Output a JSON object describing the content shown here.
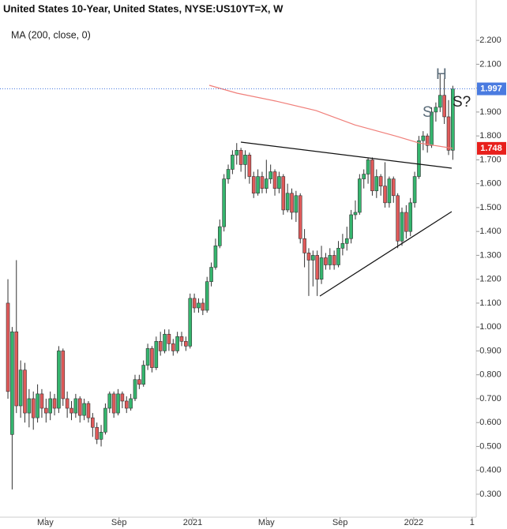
{
  "chart_data": {
    "type": "candlestick",
    "title": "United States 10-Year, United States, NYSE:US10YT=X, W",
    "up_color": "#35b56e",
    "down_color": "#e05a5a",
    "wick_color": "#333333",
    "x": [
      1.97,
      2.2,
      2.43,
      2.66,
      2.89,
      3.12,
      3.35,
      3.58,
      3.81,
      4.04,
      4.27,
      4.5,
      4.73,
      4.96,
      5.19,
      5.42,
      5.65,
      5.88,
      6.11,
      6.34,
      6.57,
      6.8,
      7.03,
      7.26,
      7.49,
      7.72,
      7.95,
      8.18,
      8.41,
      8.64,
      8.87,
      9.1,
      9.33,
      9.56,
      9.79,
      10.02,
      10.25,
      10.48,
      10.71,
      10.94,
      11.17,
      11.4,
      11.63,
      11.86,
      12.09,
      12.32,
      12.55,
      12.78,
      13.01,
      13.24,
      13.47,
      13.7,
      13.93,
      14.16,
      14.39,
      14.62,
      14.85,
      15.08,
      15.31,
      15.54,
      15.77,
      16,
      16.23,
      16.46,
      16.69,
      16.92,
      17.15,
      17.38,
      17.61,
      17.84,
      18.07,
      18.3,
      18.53,
      18.76,
      18.99,
      19.22,
      19.45,
      19.68,
      19.91,
      20.14,
      20.37,
      20.6,
      20.83,
      21.06,
      21.29,
      21.52,
      21.75,
      21.98,
      22.21,
      22.44,
      22.67,
      22.9,
      23.13,
      23.36,
      23.59,
      23.82,
      24.05,
      24.28,
      24.51,
      24.74,
      24.97,
      25.2,
      25.43,
      25.66,
      25.89,
      26.12
    ],
    "open": [
      1.1,
      0.55,
      0.98,
      0.67,
      0.82,
      0.64,
      0.7,
      0.62,
      0.72,
      0.66,
      0.64,
      0.7,
      0.66,
      0.9,
      0.7,
      0.66,
      0.64,
      0.7,
      0.63,
      0.68,
      0.62,
      0.58,
      0.53,
      0.56,
      0.66,
      0.72,
      0.64,
      0.72,
      0.69,
      0.66,
      0.7,
      0.78,
      0.76,
      0.84,
      0.91,
      0.83,
      0.94,
      0.9,
      0.97,
      0.93,
      0.9,
      0.96,
      0.94,
      0.92,
      1.12,
      1.08,
      1.1,
      1.07,
      1.19,
      1.25,
      1.34,
      1.42,
      1.62,
      1.66,
      1.72,
      1.74,
      1.68,
      1.72,
      1.63,
      1.56,
      1.63,
      1.58,
      1.62,
      1.65,
      1.58,
      1.63,
      1.49,
      1.56,
      1.48,
      1.55,
      1.37,
      1.31,
      1.28,
      1.3,
      1.2,
      1.29,
      1.26,
      1.3,
      1.26,
      1.33,
      1.35,
      1.37,
      1.47,
      1.48,
      1.62,
      1.64,
      1.7,
      1.57,
      1.63,
      1.59,
      1.52,
      1.62,
      1.55,
      1.36,
      1.48,
      1.4,
      1.52,
      1.63,
      1.78,
      1.8,
      1.76,
      1.9,
      1.92,
      1.97,
      1.88,
      1.74
    ],
    "high": [
      1.2,
      1.0,
      1.28,
      0.86,
      0.85,
      0.74,
      0.73,
      0.76,
      0.74,
      0.7,
      0.73,
      0.72,
      0.92,
      0.91,
      0.73,
      0.69,
      0.72,
      0.71,
      0.7,
      0.69,
      0.64,
      0.6,
      0.59,
      0.68,
      0.73,
      0.73,
      0.74,
      0.73,
      0.71,
      0.72,
      0.8,
      0.8,
      0.86,
      0.93,
      0.92,
      0.96,
      0.98,
      0.99,
      0.99,
      0.95,
      0.98,
      0.98,
      0.96,
      1.14,
      1.14,
      1.12,
      1.12,
      1.21,
      1.27,
      1.37,
      1.45,
      1.64,
      1.68,
      1.74,
      1.77,
      1.75,
      1.74,
      1.73,
      1.65,
      1.66,
      1.65,
      1.7,
      1.68,
      1.66,
      1.65,
      1.64,
      1.6,
      1.58,
      1.57,
      1.56,
      1.41,
      1.33,
      1.32,
      1.32,
      1.34,
      1.31,
      1.33,
      1.32,
      1.36,
      1.39,
      1.42,
      1.49,
      1.53,
      1.64,
      1.66,
      1.71,
      1.71,
      1.66,
      1.64,
      1.69,
      1.63,
      1.63,
      1.56,
      1.5,
      1.51,
      1.54,
      1.65,
      1.8,
      1.82,
      1.81,
      1.92,
      1.94,
      2.06,
      2.04,
      1.95,
      2.01
    ],
    "low": [
      0.7,
      0.32,
      0.64,
      0.62,
      0.6,
      0.58,
      0.57,
      0.6,
      0.62,
      0.6,
      0.61,
      0.63,
      0.64,
      0.67,
      0.62,
      0.61,
      0.62,
      0.6,
      0.61,
      0.6,
      0.54,
      0.51,
      0.5,
      0.55,
      0.64,
      0.62,
      0.63,
      0.66,
      0.64,
      0.65,
      0.69,
      0.74,
      0.75,
      0.82,
      0.81,
      0.82,
      0.88,
      0.89,
      0.9,
      0.88,
      0.89,
      0.92,
      0.9,
      0.91,
      1.06,
      1.06,
      1.05,
      1.06,
      1.17,
      1.24,
      1.33,
      1.4,
      1.6,
      1.64,
      1.68,
      1.65,
      1.62,
      1.6,
      1.54,
      1.55,
      1.56,
      1.56,
      1.6,
      1.55,
      1.56,
      1.47,
      1.48,
      1.45,
      1.44,
      1.35,
      1.25,
      1.13,
      1.17,
      1.13,
      1.18,
      1.24,
      1.24,
      1.24,
      1.25,
      1.3,
      1.32,
      1.35,
      1.45,
      1.47,
      1.58,
      1.6,
      1.55,
      1.54,
      1.55,
      1.5,
      1.5,
      1.52,
      1.33,
      1.34,
      1.37,
      1.38,
      1.5,
      1.62,
      1.74,
      1.73,
      1.75,
      1.86,
      1.9,
      1.85,
      1.72,
      1.7
    ],
    "close": [
      0.73,
      0.98,
      0.67,
      0.82,
      0.64,
      0.7,
      0.62,
      0.72,
      0.66,
      0.64,
      0.7,
      0.66,
      0.9,
      0.7,
      0.66,
      0.64,
      0.7,
      0.63,
      0.68,
      0.62,
      0.58,
      0.53,
      0.56,
      0.66,
      0.72,
      0.64,
      0.72,
      0.69,
      0.66,
      0.7,
      0.78,
      0.76,
      0.84,
      0.91,
      0.83,
      0.94,
      0.9,
      0.97,
      0.93,
      0.9,
      0.96,
      0.94,
      0.92,
      1.12,
      1.08,
      1.1,
      1.07,
      1.19,
      1.25,
      1.34,
      1.42,
      1.62,
      1.66,
      1.72,
      1.74,
      1.68,
      1.72,
      1.63,
      1.56,
      1.63,
      1.58,
      1.62,
      1.65,
      1.58,
      1.63,
      1.49,
      1.56,
      1.48,
      1.55,
      1.37,
      1.31,
      1.28,
      1.3,
      1.2,
      1.29,
      1.26,
      1.3,
      1.26,
      1.33,
      1.35,
      1.37,
      1.47,
      1.48,
      1.62,
      1.64,
      1.7,
      1.57,
      1.63,
      1.59,
      1.52,
      1.62,
      1.55,
      1.36,
      1.48,
      1.4,
      1.52,
      1.63,
      1.78,
      1.8,
      1.76,
      1.9,
      1.92,
      1.97,
      1.88,
      1.74,
      1.997
    ],
    "ma": {
      "name": "MA (200, close, 0)",
      "color": "#f07f7a",
      "x": [
        12.9,
        14.4,
        16.5,
        18.7,
        20.8,
        23.0,
        24.3,
        26.12
      ],
      "values": [
        2.012,
        1.979,
        1.946,
        1.906,
        1.846,
        1.8,
        1.77,
        1.748
      ]
    },
    "last_color": "#4a7be0",
    "ma_label_color": "#e8201c",
    "annotations": [
      "S",
      "H",
      "S?"
    ],
    "xlim": [
      1.54,
      27.39
    ],
    "xticks": [
      {
        "value": 4,
        "label": "May"
      },
      {
        "value": 8,
        "label": "Sep"
      },
      {
        "value": 12,
        "label": "2021"
      },
      {
        "value": 16,
        "label": "May"
      },
      {
        "value": 20,
        "label": "Sep"
      },
      {
        "value": 24,
        "label": "2022"
      },
      {
        "value": 27.17,
        "label": "1"
      }
    ],
    "ylim": [
      0.204,
      2.369
    ],
    "yticks": [
      {
        "value": 2.2,
        "label": "2.200"
      },
      {
        "value": 2.1,
        "label": "2.100"
      },
      {
        "value": 2.0,
        "label": "2.000"
      },
      {
        "value": 1.9,
        "label": "1.900"
      },
      {
        "value": 1.8,
        "label": "1.800"
      },
      {
        "value": 1.7,
        "label": "1.700"
      },
      {
        "value": 1.6,
        "label": "1.600"
      },
      {
        "value": 1.5,
        "label": "1.500"
      },
      {
        "value": 1.4,
        "label": "1.400"
      },
      {
        "value": 1.3,
        "label": "1.300"
      },
      {
        "value": 1.2,
        "label": "1.200"
      },
      {
        "value": 1.1,
        "label": "1.100"
      },
      {
        "value": 1.0,
        "label": "1.000"
      },
      {
        "value": 0.9,
        "label": "0.900"
      },
      {
        "value": 0.8,
        "label": "0.800"
      },
      {
        "value": 0.7,
        "label": "0.700"
      },
      {
        "value": 0.6,
        "label": "0.600"
      },
      {
        "value": 0.5,
        "label": "0.500"
      },
      {
        "value": 0.4,
        "label": "0.400"
      },
      {
        "value": 0.3,
        "label": "0.300"
      }
    ]
  }
}
